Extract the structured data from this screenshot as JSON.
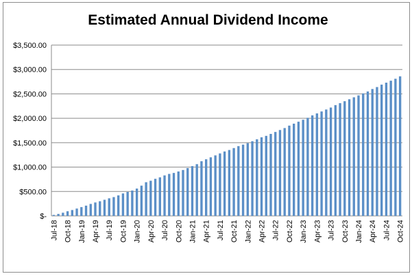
{
  "chart_data": {
    "type": "bar",
    "title": "Estimated Annual Dividend Income",
    "xlabel": "",
    "ylabel": "",
    "ylim": [
      0,
      3500
    ],
    "grid": true,
    "legend": "none",
    "bar_color": "#5B8FC7",
    "grid_color": "#8a8a8a",
    "ytick_values": [
      0,
      500,
      1000,
      1500,
      2000,
      2500,
      3000,
      3500
    ],
    "ytick_labels": [
      "$-",
      "$500.00",
      "$1,000.00",
      "$1,500.00",
      "$2,000.00",
      "$2,500.00",
      "$3,000.00",
      "$3,500.00"
    ],
    "xtick_labels": [
      "Jul-18",
      "Oct-18",
      "Jan-19",
      "Apr-19",
      "Jul-19",
      "Oct-19",
      "Jan-20",
      "Apr-20",
      "Jul-20",
      "Oct-20",
      "Jan-21",
      "Apr-21",
      "Jul-21",
      "Oct-21",
      "Jan-22",
      "Apr-22",
      "Jul-22",
      "Oct-22",
      "Jan-23",
      "Apr-23",
      "Jul-23",
      "Oct-23",
      "Jan-24",
      "Apr-24",
      "Jul-24",
      "Oct-24"
    ],
    "categories": [
      "Jul-18",
      "Aug-18",
      "Sep-18",
      "Oct-18",
      "Nov-18",
      "Dec-18",
      "Jan-19",
      "Feb-19",
      "Mar-19",
      "Apr-19",
      "May-19",
      "Jun-19",
      "Jul-19",
      "Aug-19",
      "Sep-19",
      "Oct-19",
      "Nov-19",
      "Dec-19",
      "Jan-20",
      "Feb-20",
      "Mar-20",
      "Apr-20",
      "May-20",
      "Jun-20",
      "Jul-20",
      "Aug-20",
      "Sep-20",
      "Oct-20",
      "Nov-20",
      "Dec-20",
      "Jan-21",
      "Feb-21",
      "Mar-21",
      "Apr-21",
      "May-21",
      "Jun-21",
      "Jul-21",
      "Aug-21",
      "Sep-21",
      "Oct-21",
      "Nov-21",
      "Dec-21",
      "Jan-22",
      "Feb-22",
      "Mar-22",
      "Apr-22",
      "May-22",
      "Jun-22",
      "Jul-22",
      "Aug-22",
      "Sep-22",
      "Oct-22",
      "Nov-22",
      "Dec-22",
      "Jan-23",
      "Feb-23",
      "Mar-23",
      "Apr-23",
      "May-23",
      "Jun-23",
      "Jul-23",
      "Aug-23",
      "Sep-23",
      "Oct-23",
      "Nov-23",
      "Dec-23",
      "Jan-24",
      "Feb-24",
      "Mar-24",
      "Apr-24",
      "May-24",
      "Jun-24",
      "Jul-24",
      "Aug-24",
      "Sep-24",
      "Oct-24"
    ],
    "values": [
      20,
      40,
      65,
      95,
      120,
      150,
      180,
      210,
      245,
      275,
      300,
      330,
      360,
      385,
      420,
      460,
      490,
      520,
      560,
      620,
      690,
      720,
      760,
      790,
      830,
      860,
      880,
      910,
      940,
      980,
      1020,
      1060,
      1120,
      1160,
      1200,
      1240,
      1280,
      1320,
      1350,
      1390,
      1430,
      1460,
      1490,
      1530,
      1570,
      1610,
      1640,
      1680,
      1720,
      1760,
      1800,
      1850,
      1890,
      1930,
      1970,
      2010,
      2060,
      2100,
      2140,
      2180,
      2220,
      2270,
      2310,
      2350,
      2390,
      2430,
      2470,
      2510,
      2550,
      2600,
      2640,
      2690,
      2730,
      2770,
      2810,
      2860
    ]
  }
}
